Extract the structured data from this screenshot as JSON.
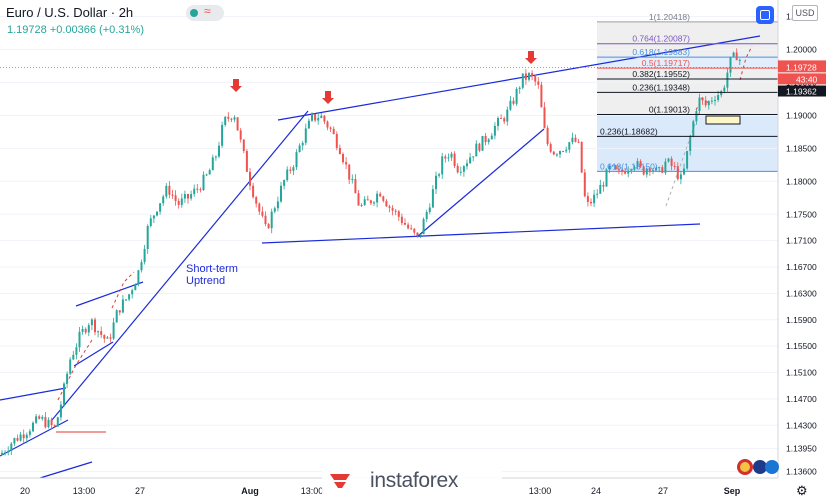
{
  "header": {
    "title": "Euro / U.S. Dollar · 2h",
    "quote": "1.19728  +0.00366 (+0.31%)",
    "currency_badge": "USD"
  },
  "x_axis_labels": [
    "20",
    "13:00",
    "27",
    "Aug",
    "13:00",
    "13:00",
    "24",
    "27",
    "Sep"
  ],
  "price_labels": {
    "last_price": "1.19728",
    "countdown": "43:40",
    "fib_level_price": "1.19362"
  },
  "annotation": {
    "short_term_uptrend": "Short-term\nUptrend"
  },
  "watermark": {
    "brand": "instaforex"
  },
  "colors": {
    "up_candle": "#26a69a",
    "down_candle": "#ef5350",
    "trendline": "#1c2bd9",
    "fib_blue_zone": "#dbeafb",
    "fib_gray_zone": "#efefef",
    "red_arrow": "#e53935"
  },
  "chart_data": {
    "type": "candlestick",
    "ylim": [
      1.135,
      1.2075
    ],
    "y_ticks": [
      1.205,
      1.2,
      1.195,
      1.19,
      1.185,
      1.18,
      1.175,
      1.171,
      1.167,
      1.163,
      1.159,
      1.155,
      1.151,
      1.147,
      1.143,
      1.1395,
      1.136
    ],
    "y_tick_labels": [
      "1.20500",
      "1.20000",
      "1.19500",
      "1.19000",
      "1.18500",
      "1.18000",
      "1.17500",
      "1.17100",
      "1.16700",
      "1.16300",
      "1.15900",
      "1.15500",
      "1.15100",
      "1.14700",
      "1.14300",
      "1.13950",
      "1.13600"
    ],
    "price_path": [
      [
        0,
        1.1385
      ],
      [
        12,
        1.1405
      ],
      [
        25,
        1.142
      ],
      [
        40,
        1.144
      ],
      [
        55,
        1.1425
      ],
      [
        62,
        1.147
      ],
      [
        70,
        1.153
      ],
      [
        80,
        1.1565
      ],
      [
        90,
        1.159
      ],
      [
        100,
        1.157
      ],
      [
        108,
        1.1555
      ],
      [
        118,
        1.1605
      ],
      [
        128,
        1.1625
      ],
      [
        138,
        1.166
      ],
      [
        148,
        1.173
      ],
      [
        158,
        1.1765
      ],
      [
        168,
        1.179
      ],
      [
        178,
        1.1765
      ],
      [
        188,
        1.1775
      ],
      [
        198,
        1.179
      ],
      [
        208,
        1.181
      ],
      [
        216,
        1.184
      ],
      [
        224,
        1.189
      ],
      [
        234,
        1.1905
      ],
      [
        242,
        1.185
      ],
      [
        250,
        1.18
      ],
      [
        258,
        1.176
      ],
      [
        266,
        1.1725
      ],
      [
        274,
        1.176
      ],
      [
        284,
        1.18
      ],
      [
        294,
        1.183
      ],
      [
        304,
        1.187
      ],
      [
        312,
        1.1895
      ],
      [
        320,
        1.19
      ],
      [
        330,
        1.188
      ],
      [
        340,
        1.185
      ],
      [
        350,
        1.1805
      ],
      [
        360,
        1.176
      ],
      [
        370,
        1.177
      ],
      [
        380,
        1.1785
      ],
      [
        390,
        1.176
      ],
      [
        400,
        1.1745
      ],
      [
        410,
        1.1725
      ],
      [
        418,
        1.1712
      ],
      [
        426,
        1.175
      ],
      [
        434,
        1.179
      ],
      [
        442,
        1.183
      ],
      [
        450,
        1.1845
      ],
      [
        458,
        1.182
      ],
      [
        466,
        1.183
      ],
      [
        476,
        1.185
      ],
      [
        486,
        1.1865
      ],
      [
        496,
        1.1885
      ],
      [
        506,
        1.19
      ],
      [
        514,
        1.1925
      ],
      [
        522,
        1.1955
      ],
      [
        530,
        1.196
      ],
      [
        538,
        1.1945
      ],
      [
        546,
        1.186
      ],
      [
        554,
        1.1845
      ],
      [
        562,
        1.185
      ],
      [
        570,
        1.186
      ],
      [
        578,
        1.186
      ],
      [
        586,
        1.176
      ],
      [
        594,
        1.1775
      ],
      [
        602,
        1.1795
      ],
      [
        610,
        1.182
      ],
      [
        618,
        1.181
      ],
      [
        626,
        1.182
      ],
      [
        634,
        1.183
      ],
      [
        642,
        1.1815
      ],
      [
        650,
        1.1825
      ],
      [
        658,
        1.181
      ],
      [
        666,
        1.183
      ],
      [
        674,
        1.182
      ],
      [
        682,
        1.18
      ],
      [
        690,
        1.1865
      ],
      [
        698,
        1.1925
      ],
      [
        706,
        1.1915
      ],
      [
        714,
        1.193
      ],
      [
        722,
        1.1935
      ],
      [
        730,
        1.198
      ],
      [
        738,
        1.1995
      ],
      [
        742,
        1.1972
      ]
    ],
    "fibonacci_upper": [
      {
        "level": "1",
        "price": 1.20418,
        "label": "1(1.20418)"
      },
      {
        "level": "0.764",
        "price": 1.20087,
        "label": "0.764(1.20087)"
      },
      {
        "level": "0.618",
        "price": 1.19883,
        "label": "0.618(1.19883)"
      },
      {
        "level": "0.5",
        "price": 1.19717,
        "label": "0.5(1.19717)"
      },
      {
        "level": "0.382",
        "price": 1.19552,
        "label": "0.382(1.19552)"
      },
      {
        "level": "0.236",
        "price": 1.19348,
        "label": "0.236(1.19348)"
      },
      {
        "level": "0",
        "price": 1.19013,
        "label": "0(1.19013)"
      }
    ],
    "fibonacci_lower": [
      {
        "level": "0.236",
        "price": 1.18682,
        "label": "0.236(1.18682)"
      },
      {
        "level": "0.618",
        "price": 1.1815,
        "label": "0.618(1.18150)"
      }
    ]
  }
}
